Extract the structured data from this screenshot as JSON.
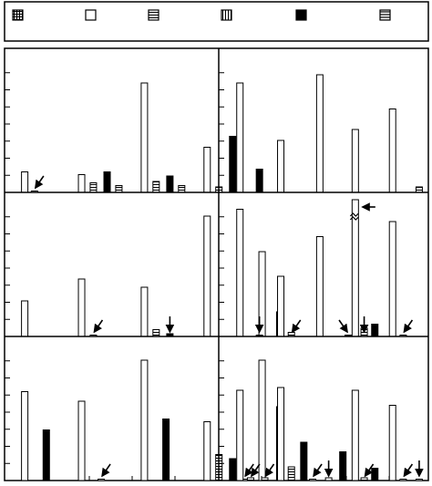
{
  "chart_data": {
    "type": "bar",
    "title": "",
    "xlabel": "",
    "ylabel": "",
    "grid": false,
    "legend_position": "top",
    "ylim": [
      0,
      100
    ],
    "legend": [
      {
        "pattern": "grid"
      },
      {
        "pattern": "white"
      },
      {
        "pattern": "hstripe"
      },
      {
        "pattern": "vstripe"
      },
      {
        "pattern": "black"
      },
      {
        "pattern": "double-hstripe"
      }
    ],
    "panels": [
      {
        "row": 0,
        "col": 0,
        "bars": [
          {
            "x": 0.4,
            "pattern": "white",
            "value": 15
          },
          {
            "x": 0.9,
            "pattern": "white",
            "value": 1
          },
          {
            "x": 3.3,
            "pattern": "white",
            "value": 13
          },
          {
            "x": 3.9,
            "pattern": "hstripe",
            "value": 7
          },
          {
            "x": 4.6,
            "pattern": "black",
            "value": 15
          },
          {
            "x": 5.2,
            "pattern": "hstripe",
            "value": 5
          },
          {
            "x": 6.5,
            "pattern": "white",
            "value": 80
          },
          {
            "x": 7.1,
            "pattern": "hstripe",
            "value": 8
          },
          {
            "x": 7.8,
            "pattern": "black",
            "value": 12
          },
          {
            "x": 8.4,
            "pattern": "hstripe",
            "value": 5
          },
          {
            "x": 9.7,
            "pattern": "white",
            "value": 33
          },
          {
            "x": 10.3,
            "pattern": "hstripe",
            "value": 4
          },
          {
            "x": 11.0,
            "pattern": "black",
            "value": 41
          }
        ],
        "arrows": [
          {
            "x": 0.9,
            "direction": "down-left"
          }
        ]
      },
      {
        "row": 0,
        "col": 1,
        "bars": [
          {
            "x": 0.5,
            "pattern": "white",
            "value": 80
          },
          {
            "x": 1.6,
            "pattern": "black",
            "value": 17
          },
          {
            "x": 2.8,
            "pattern": "white",
            "value": 38
          },
          {
            "x": 5.0,
            "pattern": "white",
            "value": 86
          },
          {
            "x": 7.0,
            "pattern": "white",
            "value": 46
          },
          {
            "x": 9.1,
            "pattern": "white",
            "value": 61
          },
          {
            "x": 10.6,
            "pattern": "hstripe",
            "value": 4
          }
        ],
        "arrows": []
      },
      {
        "row": 1,
        "col": 0,
        "bars": [
          {
            "x": 0.4,
            "pattern": "white",
            "value": 26
          },
          {
            "x": 3.3,
            "pattern": "white",
            "value": 42
          },
          {
            "x": 3.9,
            "pattern": "hstripe",
            "value": 1
          },
          {
            "x": 6.5,
            "pattern": "white",
            "value": 36
          },
          {
            "x": 7.1,
            "pattern": "hstripe",
            "value": 5
          },
          {
            "x": 7.8,
            "pattern": "black",
            "value": 2
          },
          {
            "x": 9.7,
            "pattern": "white",
            "value": 88
          },
          {
            "x": 12.5,
            "pattern": "white",
            "value": 62
          },
          {
            "x": 13.4,
            "pattern": "black",
            "value": 18
          }
        ],
        "arrows": [
          {
            "x": 3.9,
            "direction": "down-left"
          },
          {
            "x": 7.8,
            "direction": "down"
          }
        ]
      },
      {
        "row": 1,
        "col": 1,
        "bars": [
          {
            "x": 0.5,
            "pattern": "white",
            "value": 93
          },
          {
            "x": 1.6,
            "pattern": "black",
            "value": 1
          },
          {
            "x": 2.8,
            "pattern": "white",
            "value": 44
          },
          {
            "x": 3.4,
            "pattern": "hstripe",
            "value": 3
          },
          {
            "x": 5.0,
            "pattern": "white",
            "value": 73
          },
          {
            "x": 7.0,
            "pattern": "white",
            "value": 100,
            "broken": true
          },
          {
            "x": 6.6,
            "pattern": "black",
            "value": 1
          },
          {
            "x": 7.5,
            "pattern": "hstripe",
            "value": 6
          },
          {
            "x": 8.1,
            "pattern": "black",
            "value": 9
          },
          {
            "x": 9.1,
            "pattern": "white",
            "value": 84
          },
          {
            "x": 9.7,
            "pattern": "white",
            "value": 1
          }
        ],
        "arrows": [
          {
            "x": 1.6,
            "direction": "down"
          },
          {
            "x": 3.4,
            "direction": "down-left"
          },
          {
            "x": 6.6,
            "direction": "down-right"
          },
          {
            "x": 7.5,
            "direction": "down"
          },
          {
            "x": 9.7,
            "direction": "down-left"
          },
          {
            "x": 7.0,
            "direction": "left",
            "at_top": true
          }
        ]
      },
      {
        "row": 2,
        "col": 0,
        "bars": [
          {
            "x": 0.4,
            "pattern": "white",
            "value": 65
          },
          {
            "x": 1.5,
            "pattern": "black",
            "value": 37
          },
          {
            "x": 3.3,
            "pattern": "white",
            "value": 58
          },
          {
            "x": 4.3,
            "pattern": "white",
            "value": 1
          },
          {
            "x": 6.5,
            "pattern": "white",
            "value": 88
          },
          {
            "x": 7.6,
            "pattern": "black",
            "value": 45
          },
          {
            "x": 9.7,
            "pattern": "white",
            "value": 43
          },
          {
            "x": 10.3,
            "pattern": "hstripe",
            "value": 19
          },
          {
            "x": 11.0,
            "pattern": "black",
            "value": 16
          },
          {
            "x": 11.6,
            "pattern": "white",
            "value": 1
          },
          {
            "x": 12.5,
            "pattern": "white",
            "value": 88
          },
          {
            "x": 13.4,
            "pattern": "black",
            "value": 54
          }
        ],
        "arrows": [
          {
            "x": 4.3,
            "direction": "down-left"
          },
          {
            "x": 11.6,
            "direction": "down-left"
          }
        ]
      },
      {
        "row": 2,
        "col": 1,
        "bars": [
          {
            "x": 0.5,
            "pattern": "white",
            "value": 66
          },
          {
            "x": 1.1,
            "pattern": "hstripe",
            "value": 2
          },
          {
            "x": 1.9,
            "pattern": "hstripe",
            "value": 2
          },
          {
            "x": 2.8,
            "pattern": "white",
            "value": 68
          },
          {
            "x": 3.4,
            "pattern": "hstripe",
            "value": 10
          },
          {
            "x": 4.1,
            "pattern": "black",
            "value": 28
          },
          {
            "x": 4.6,
            "pattern": "white",
            "value": 1
          },
          {
            "x": 5.5,
            "pattern": "white",
            "value": 2
          },
          {
            "x": 6.3,
            "pattern": "black",
            "value": 21
          },
          {
            "x": 7.0,
            "pattern": "white",
            "value": 66
          },
          {
            "x": 7.5,
            "pattern": "hstripe",
            "value": 2
          },
          {
            "x": 8.1,
            "pattern": "black",
            "value": 9
          },
          {
            "x": 9.1,
            "pattern": "white",
            "value": 55
          },
          {
            "x": 9.7,
            "pattern": "white",
            "value": 1
          },
          {
            "x": 10.6,
            "pattern": "white",
            "value": 1
          }
        ],
        "arrows": [
          {
            "x": 1.1,
            "direction": "down-left"
          },
          {
            "x": 1.9,
            "direction": "down-left"
          },
          {
            "x": 4.6,
            "direction": "down-left"
          },
          {
            "x": 5.5,
            "direction": "down"
          },
          {
            "x": 7.5,
            "direction": "down-left"
          },
          {
            "x": 9.7,
            "direction": "down-left"
          },
          {
            "x": 10.6,
            "direction": "down"
          }
        ]
      }
    ]
  }
}
